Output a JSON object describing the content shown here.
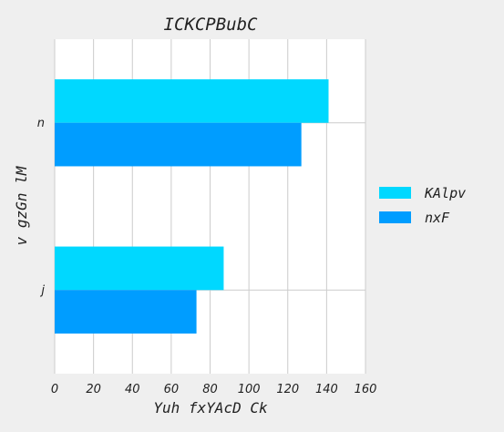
{
  "chart_data": {
    "type": "bar",
    "orientation": "horizontal",
    "title": "ICKCPBubC",
    "xlabel": "Yuh fxYAcD Ck",
    "ylabel": "v gzGn lM",
    "categories": [
      "n",
      "j"
    ],
    "series": [
      {
        "name": "KAlpv",
        "color": "#00d8ff",
        "values": [
          141,
          87
        ]
      },
      {
        "name": "nxF",
        "color": "#009dff",
        "values": [
          127,
          73
        ]
      }
    ],
    "xlim": [
      0,
      160
    ],
    "xticks": [
      0,
      20,
      40,
      60,
      80,
      100,
      120,
      140,
      160
    ],
    "grid": true,
    "legend_position": "right"
  }
}
